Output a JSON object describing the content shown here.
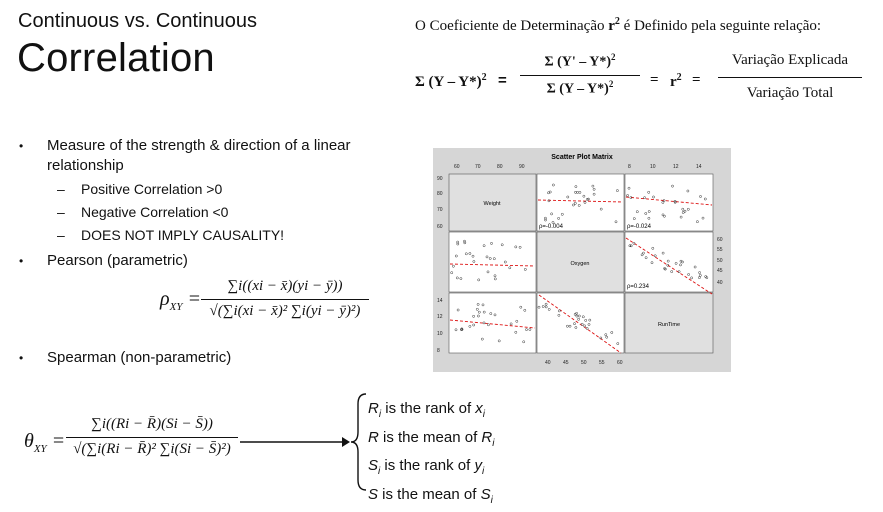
{
  "header": {
    "subtitle": "Continuous vs. Continuous",
    "title": "Correlation"
  },
  "definition": {
    "text_prefix": "O Coeficiente de Determinação",
    "symbol": "r",
    "text_suffix": "é Definido pela seguinte relação:",
    "lhs": "Σ (Y – Y*)",
    "frac1_num": "Σ (Y' – Y*)",
    "frac1_den": "Σ (Y – Y*)",
    "eq": "=",
    "r2": "r",
    "frac2_num": "Variação Explicada",
    "frac2_den": "Variação Total"
  },
  "bullets": {
    "b1_line1": "Measure of the strength & direction of a linear",
    "b1_line2": "relationship",
    "b1_sub1": "Positive Correlation >0",
    "b1_sub2": "Negative Correlation <0",
    "b1_sub3": "DOES NOT IMPLY CAUSALITY!",
    "b2": "Pearson (parametric)",
    "b3": "Spearman (non-parametric)"
  },
  "pearson": {
    "lhs": "ρ",
    "lhs_sub": "XY",
    "num": "∑i((xi − x̄)(yi − ȳ))",
    "den": "√(∑i(xi − x̄)² ∑i(yi − ȳ)²)"
  },
  "spearman": {
    "lhs": "θ",
    "lhs_sub": "XY",
    "num": "∑i((Ri − R̄)(Si − S̄))",
    "den": "√(∑i(Ri − R̄)² ∑i(Si − S̄)²)"
  },
  "legend": {
    "l1a": "R",
    "l1b": "i",
    "l1c": " is the rank of ",
    "l1d": "x",
    "l1e": "i",
    "l2a": "R",
    "l2c": " is the mean of ",
    "l2d": "R",
    "l2e": "i",
    "l3a": "S",
    "l3b": "i",
    "l3c": " is the rank of ",
    "l3d": "y",
    "l3e": "i",
    "l4a": "S",
    "l4c": " is the mean of ",
    "l4d": "S",
    "l4e": "i"
  },
  "matrix": {
    "title": "Scatter Plot Matrix",
    "var1": "Weight",
    "var2": "Oxygen",
    "var3": "RunTime",
    "top_ticks": [
      "60",
      "70",
      "80",
      "90",
      "8",
      "10",
      "12",
      "14"
    ],
    "bottom_ticks": [
      "40",
      "45",
      "50",
      "55",
      "60"
    ],
    "left_ticks_1": [
      "90",
      "80",
      "70",
      "60"
    ],
    "left_ticks_3": [
      "14",
      "12",
      "10",
      "8"
    ],
    "right_ticks": [
      "60",
      "55",
      "50",
      "45",
      "40"
    ],
    "rho_weight_oxygen": "ρ=-0.004",
    "rho_weight_runtime": "ρ=-0.024",
    "rho_oxygen_runtime": "ρ=0.234"
  }
}
